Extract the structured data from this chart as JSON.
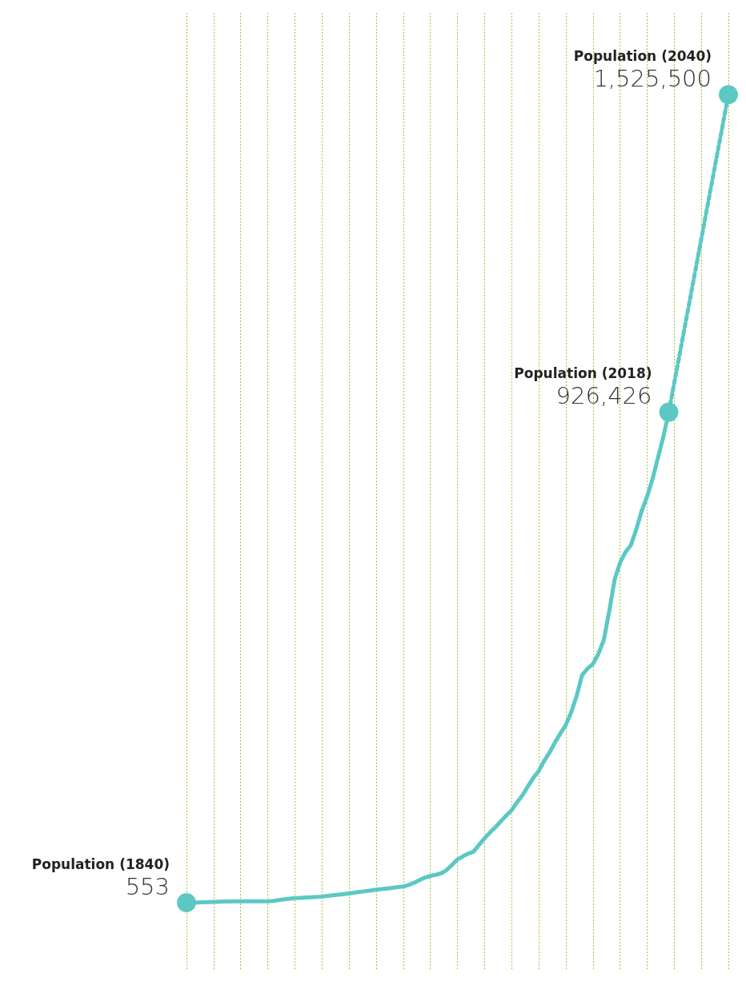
{
  "chart_data": {
    "type": "line",
    "categories": [
      null,
      null,
      null,
      null,
      null,
      null,
      null,
      null,
      null,
      null,
      null,
      null,
      null,
      null,
      null,
      null,
      null,
      null,
      null,
      null,
      null,
      null,
      null,
      null,
      null,
      null,
      null,
      null,
      null,
      null,
      null,
      null,
      null,
      null,
      null,
      null,
      null,
      null,
      null,
      null,
      null,
      null,
      null,
      null,
      null,
      null,
      null,
      null,
      null,
      null,
      null,
      null,
      null,
      null,
      null,
      null,
      null,
      null,
      null,
      null,
      null,
      null,
      null,
      null,
      null,
      null,
      null,
      null,
      null,
      null,
      null,
      null,
      null,
      null,
      null,
      null,
      null,
      null,
      null,
      null,
      null,
      null,
      null,
      null,
      null,
      null,
      null,
      null,
      null,
      null,
      null,
      null,
      null,
      null,
      null,
      null,
      null,
      null,
      null,
      null,
      null
    ],
    "ylim": [
      -125000,
      1680000
    ],
    "grid": "x",
    "series": [
      {
        "color": "#5bc8c4",
        "line_style": "solid",
        "values": [
          553,
          800,
          1000,
          1300,
          1600,
          2000,
          2300,
          2600,
          2800,
          3000,
          3000,
          3000,
          3000,
          3000,
          3000,
          3000,
          4000,
          5500,
          7000,
          8000,
          9000,
          9600,
          10200,
          10800,
          11400,
          12000,
          13200,
          14400,
          15600,
          16800,
          18000,
          19400,
          20800,
          22200,
          23600,
          25000,
          26200,
          27400,
          28600,
          29800,
          31000,
          34000,
          38000,
          43000,
          48000,
          51000,
          53000,
          56000,
          62000,
          72000,
          82000,
          88000,
          93000,
          97000,
          110000,
          122000,
          133000,
          143000,
          154000,
          165000,
          175000,
          190000,
          203000,
          220000,
          236000,
          249000,
          268000,
          284000,
          303000,
          320000,
          336000,
          360000,
          391000,
          430000,
          442000,
          451000,
          470000,
          496000,
          550000,
          610000,
          642000,
          662000,
          675000,
          705000,
          740000,
          767000,
          800000,
          840000,
          880000,
          926426,
          null,
          null,
          null,
          null,
          null,
          null,
          null,
          null,
          null,
          null,
          null
        ],
        "value_labels": [
          "553",
          null,
          null,
          null,
          null,
          null,
          null,
          null,
          null,
          null,
          null,
          null,
          null,
          null,
          null,
          null,
          null,
          null,
          null,
          null,
          null,
          null,
          null,
          null,
          null,
          null,
          null,
          null,
          null,
          null,
          null,
          null,
          null,
          null,
          null,
          null,
          null,
          null,
          null,
          null,
          null,
          null,
          null,
          null,
          null,
          null,
          null,
          null,
          null,
          null,
          null,
          null,
          null,
          null,
          null,
          null,
          null,
          null,
          null,
          null,
          null,
          null,
          null,
          null,
          null,
          null,
          null,
          null,
          null,
          null,
          null,
          null,
          null,
          null,
          null,
          null,
          null,
          null,
          null,
          null,
          null,
          null,
          null,
          null,
          null,
          null,
          null,
          null,
          null,
          "926,426",
          null,
          null,
          null,
          null,
          null,
          null,
          null,
          null,
          null,
          null,
          null
        ]
      },
      {
        "color": "#5bc8c4",
        "line_style": "dashed",
        "values": [
          null,
          null,
          null,
          null,
          null,
          null,
          null,
          null,
          null,
          null,
          null,
          null,
          null,
          null,
          null,
          null,
          null,
          null,
          null,
          null,
          null,
          null,
          null,
          null,
          null,
          null,
          null,
          null,
          null,
          null,
          null,
          null,
          null,
          null,
          null,
          null,
          null,
          null,
          null,
          null,
          null,
          null,
          null,
          null,
          null,
          null,
          null,
          null,
          null,
          null,
          null,
          null,
          null,
          null,
          null,
          null,
          null,
          null,
          null,
          null,
          null,
          null,
          null,
          null,
          null,
          null,
          null,
          null,
          null,
          null,
          null,
          null,
          null,
          null,
          null,
          null,
          null,
          null,
          null,
          null,
          null,
          null,
          null,
          null,
          null,
          null,
          null,
          null,
          null,
          926426,
          981000,
          1035000,
          1090000,
          1144000,
          1199000,
          1253000,
          1308000,
          1362000,
          1417000,
          1471000,
          1525500
        ],
        "value_labels": [
          null,
          null,
          null,
          null,
          null,
          null,
          null,
          null,
          null,
          null,
          null,
          null,
          null,
          null,
          null,
          null,
          null,
          null,
          null,
          null,
          null,
          null,
          null,
          null,
          null,
          null,
          null,
          null,
          null,
          null,
          null,
          null,
          null,
          null,
          null,
          null,
          null,
          null,
          null,
          null,
          null,
          null,
          null,
          null,
          null,
          null,
          null,
          null,
          null,
          null,
          null,
          null,
          null,
          null,
          null,
          null,
          null,
          null,
          null,
          null,
          null,
          null,
          null,
          null,
          null,
          null,
          null,
          null,
          null,
          null,
          null,
          null,
          null,
          null,
          null,
          null,
          null,
          null,
          null,
          null,
          null,
          null,
          null,
          null,
          null,
          null,
          null,
          null,
          null,
          null,
          null,
          null,
          null,
          null,
          null,
          null,
          null,
          null,
          null,
          null,
          "1,525,500"
        ]
      }
    ],
    "annotations": [
      "Population (1840)",
      "Population (2018)",
      "Population (2040)"
    ]
  }
}
